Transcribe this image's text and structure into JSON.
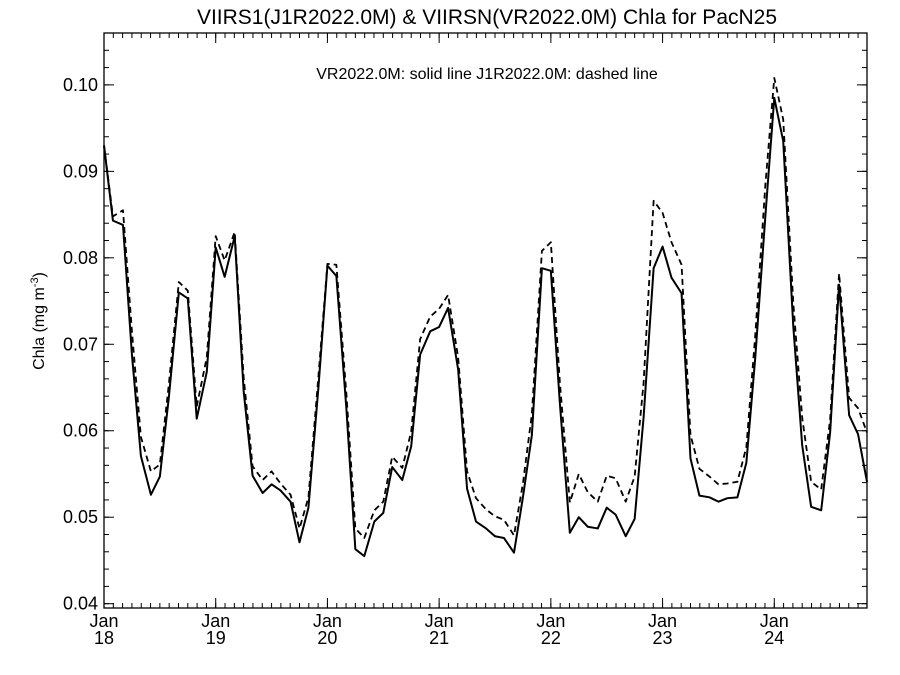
{
  "chart_data": {
    "type": "line",
    "title": "VIIRS1(J1R2022.0M) & VIIRSN(VR2022.0M)  Chla for PacN25",
    "legend_text": "VR2022.0M: solid line   J1R2022.0M: dashed line",
    "ylabel": "Chla (mg m",
    "ylabel_superscript": "-3",
    "ylabel_close": ")",
    "ylim": [
      0.0395,
      0.106
    ],
    "xlim": [
      2018.0,
      2024.83
    ],
    "yticks": [
      {
        "value": 0.04,
        "label": "0.04"
      },
      {
        "value": 0.05,
        "label": "0.05"
      },
      {
        "value": 0.06,
        "label": "0.06"
      },
      {
        "value": 0.07,
        "label": "0.07"
      },
      {
        "value": 0.08,
        "label": "0.08"
      },
      {
        "value": 0.09,
        "label": "0.09"
      },
      {
        "value": 0.1,
        "label": "0.10"
      }
    ],
    "xticks": [
      {
        "value": 2018,
        "month": "Jan",
        "year": "18"
      },
      {
        "value": 2019,
        "month": "Jan",
        "year": "19"
      },
      {
        "value": 2020,
        "month": "Jan",
        "year": "20"
      },
      {
        "value": 2021,
        "month": "Jan",
        "year": "21"
      },
      {
        "value": 2022,
        "month": "Jan",
        "year": "22"
      },
      {
        "value": 2023,
        "month": "Jan",
        "year": "23"
      },
      {
        "value": 2024,
        "month": "Jan",
        "year": "24"
      }
    ],
    "series": [
      {
        "style": "solid",
        "x": [
          2018.0,
          2018.08,
          2018.17,
          2018.25,
          2018.33,
          2018.42,
          2018.5,
          2018.58,
          2018.67,
          2018.75,
          2018.83,
          2018.92,
          2019.0,
          2019.08,
          2019.17,
          2019.25,
          2019.33,
          2019.42,
          2019.5,
          2019.58,
          2019.67,
          2019.75,
          2019.83,
          2019.92,
          2020.0,
          2020.08,
          2020.17,
          2020.25,
          2020.33,
          2020.42,
          2020.5,
          2020.58,
          2020.67,
          2020.75,
          2020.83,
          2020.92,
          2021.0,
          2021.08,
          2021.17,
          2021.25,
          2021.33,
          2021.42,
          2021.5,
          2021.58,
          2021.67,
          2021.75,
          2021.83,
          2021.92,
          2022.0,
          2022.08,
          2022.17,
          2022.25,
          2022.33,
          2022.42,
          2022.5,
          2022.58,
          2022.67,
          2022.75,
          2022.83,
          2022.92,
          2023.0,
          2023.08,
          2023.17,
          2023.25,
          2023.33,
          2023.42,
          2023.5,
          2023.58,
          2023.67,
          2023.75,
          2023.83,
          2023.92,
          2024.0,
          2024.08,
          2024.17,
          2024.25,
          2024.33,
          2024.42,
          2024.5,
          2024.58,
          2024.67,
          2024.75,
          2024.83
        ],
        "y": [
          0.093,
          0.0843,
          0.0838,
          0.0688,
          0.0571,
          0.0526,
          0.0547,
          0.0638,
          0.076,
          0.0753,
          0.0614,
          0.0668,
          0.0812,
          0.0778,
          0.0825,
          0.0646,
          0.0548,
          0.0528,
          0.0538,
          0.0531,
          0.0518,
          0.0471,
          0.0511,
          0.0651,
          0.0791,
          0.0779,
          0.0625,
          0.0463,
          0.0455,
          0.0495,
          0.0505,
          0.0558,
          0.0543,
          0.0582,
          0.0688,
          0.0715,
          0.072,
          0.0742,
          0.0671,
          0.0533,
          0.0495,
          0.0487,
          0.0478,
          0.0476,
          0.0459,
          0.0523,
          0.0595,
          0.0788,
          0.0785,
          0.0633,
          0.0482,
          0.05,
          0.0489,
          0.0487,
          0.0511,
          0.0503,
          0.0478,
          0.0498,
          0.0615,
          0.0788,
          0.0813,
          0.0777,
          0.0759,
          0.0568,
          0.0525,
          0.0523,
          0.0518,
          0.0522,
          0.0523,
          0.0563,
          0.0685,
          0.0848,
          0.0985,
          0.0935,
          0.0721,
          0.0583,
          0.0512,
          0.0508,
          0.0598,
          0.0769,
          0.0618,
          0.0596,
          0.0541
        ]
      },
      {
        "style": "dashed",
        "x": [
          2018.0,
          2018.08,
          2018.17,
          2018.25,
          2018.33,
          2018.42,
          2018.5,
          2018.58,
          2018.67,
          2018.75,
          2018.83,
          2018.92,
          2019.0,
          2019.08,
          2019.17,
          2019.25,
          2019.33,
          2019.42,
          2019.5,
          2019.58,
          2019.67,
          2019.75,
          2019.83,
          2019.92,
          2020.0,
          2020.08,
          2020.17,
          2020.25,
          2020.33,
          2020.42,
          2020.5,
          2020.58,
          2020.67,
          2020.75,
          2020.83,
          2020.92,
          2021.0,
          2021.08,
          2021.17,
          2021.25,
          2021.33,
          2021.42,
          2021.5,
          2021.58,
          2021.67,
          2021.75,
          2021.83,
          2021.92,
          2022.0,
          2022.08,
          2022.17,
          2022.25,
          2022.33,
          2022.42,
          2022.5,
          2022.58,
          2022.67,
          2022.75,
          2022.83,
          2022.92,
          2023.0,
          2023.08,
          2023.17,
          2023.25,
          2023.33,
          2023.42,
          2023.5,
          2023.58,
          2023.67,
          2023.75,
          2023.83,
          2023.92,
          2024.0,
          2024.08,
          2024.17,
          2024.25,
          2024.33,
          2024.42,
          2024.5,
          2024.58,
          2024.67,
          2024.75,
          2024.83
        ],
        "y": [
          0.093,
          0.0848,
          0.0855,
          0.0715,
          0.0593,
          0.0553,
          0.0561,
          0.0653,
          0.0772,
          0.0762,
          0.0628,
          0.0685,
          0.0825,
          0.0797,
          0.083,
          0.0662,
          0.0559,
          0.0543,
          0.0553,
          0.0539,
          0.0526,
          0.0487,
          0.0523,
          0.0664,
          0.0793,
          0.0792,
          0.0642,
          0.0487,
          0.0476,
          0.0508,
          0.0518,
          0.057,
          0.0557,
          0.0599,
          0.0706,
          0.0732,
          0.0741,
          0.0757,
          0.0685,
          0.0553,
          0.0522,
          0.0509,
          0.0501,
          0.0497,
          0.0479,
          0.0539,
          0.0619,
          0.0808,
          0.0818,
          0.0657,
          0.0517,
          0.055,
          0.0529,
          0.0518,
          0.0548,
          0.0545,
          0.0518,
          0.0547,
          0.0655,
          0.0866,
          0.0852,
          0.0818,
          0.0792,
          0.0595,
          0.0556,
          0.0547,
          0.0538,
          0.0539,
          0.0541,
          0.0581,
          0.0711,
          0.0884,
          0.1008,
          0.096,
          0.0748,
          0.0615,
          0.0541,
          0.0532,
          0.0613,
          0.0782,
          0.0638,
          0.0626,
          0.0598
        ]
      }
    ]
  }
}
